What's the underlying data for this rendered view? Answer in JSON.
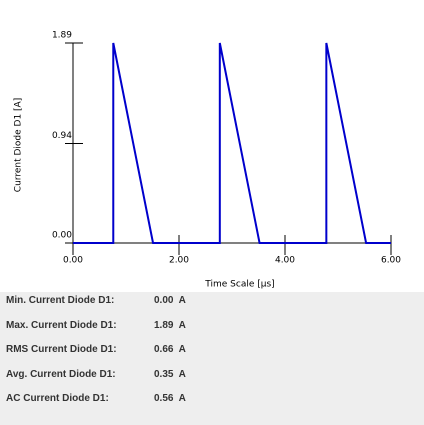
{
  "chart_data": {
    "type": "line",
    "ylabel": "Current Diode D1 [A]",
    "xlabel": "Time Scale  [μs]",
    "x": [
      0,
      0.76,
      0.76,
      1.51,
      2.77,
      2.77,
      3.52,
      4.78,
      4.78,
      5.53,
      6
    ],
    "series": [
      {
        "color": "#0000cc",
        "values": [
          0,
          0,
          1.89,
          0,
          0,
          1.89,
          0,
          0,
          1.89,
          0,
          0
        ]
      }
    ],
    "xlim": [
      0,
      6
    ],
    "xticks": [
      {
        "value": 0,
        "label": "0.00"
      },
      {
        "value": 2,
        "label": "2.00"
      },
      {
        "value": 4,
        "label": "4.00"
      },
      {
        "value": 6,
        "label": "6.00"
      }
    ],
    "ylim": [
      0,
      1.89
    ],
    "yticks": [
      {
        "value": 0,
        "label": "0.00"
      },
      0.94,
      1.89
    ],
    "grid": false
  },
  "stats": [
    {
      "label": "Min. Current Diode D1:",
      "value": "0.00  A"
    },
    {
      "label": "Max. Current Diode D1:",
      "value": "1.89  A"
    },
    {
      "label": "RMS Current Diode D1:",
      "value": "0.66  A"
    },
    {
      "label": "Avg. Current Diode D1:",
      "value": "0.35  A"
    },
    {
      "label": "AC Current Diode D1:",
      "value": "0.56  A"
    }
  ]
}
